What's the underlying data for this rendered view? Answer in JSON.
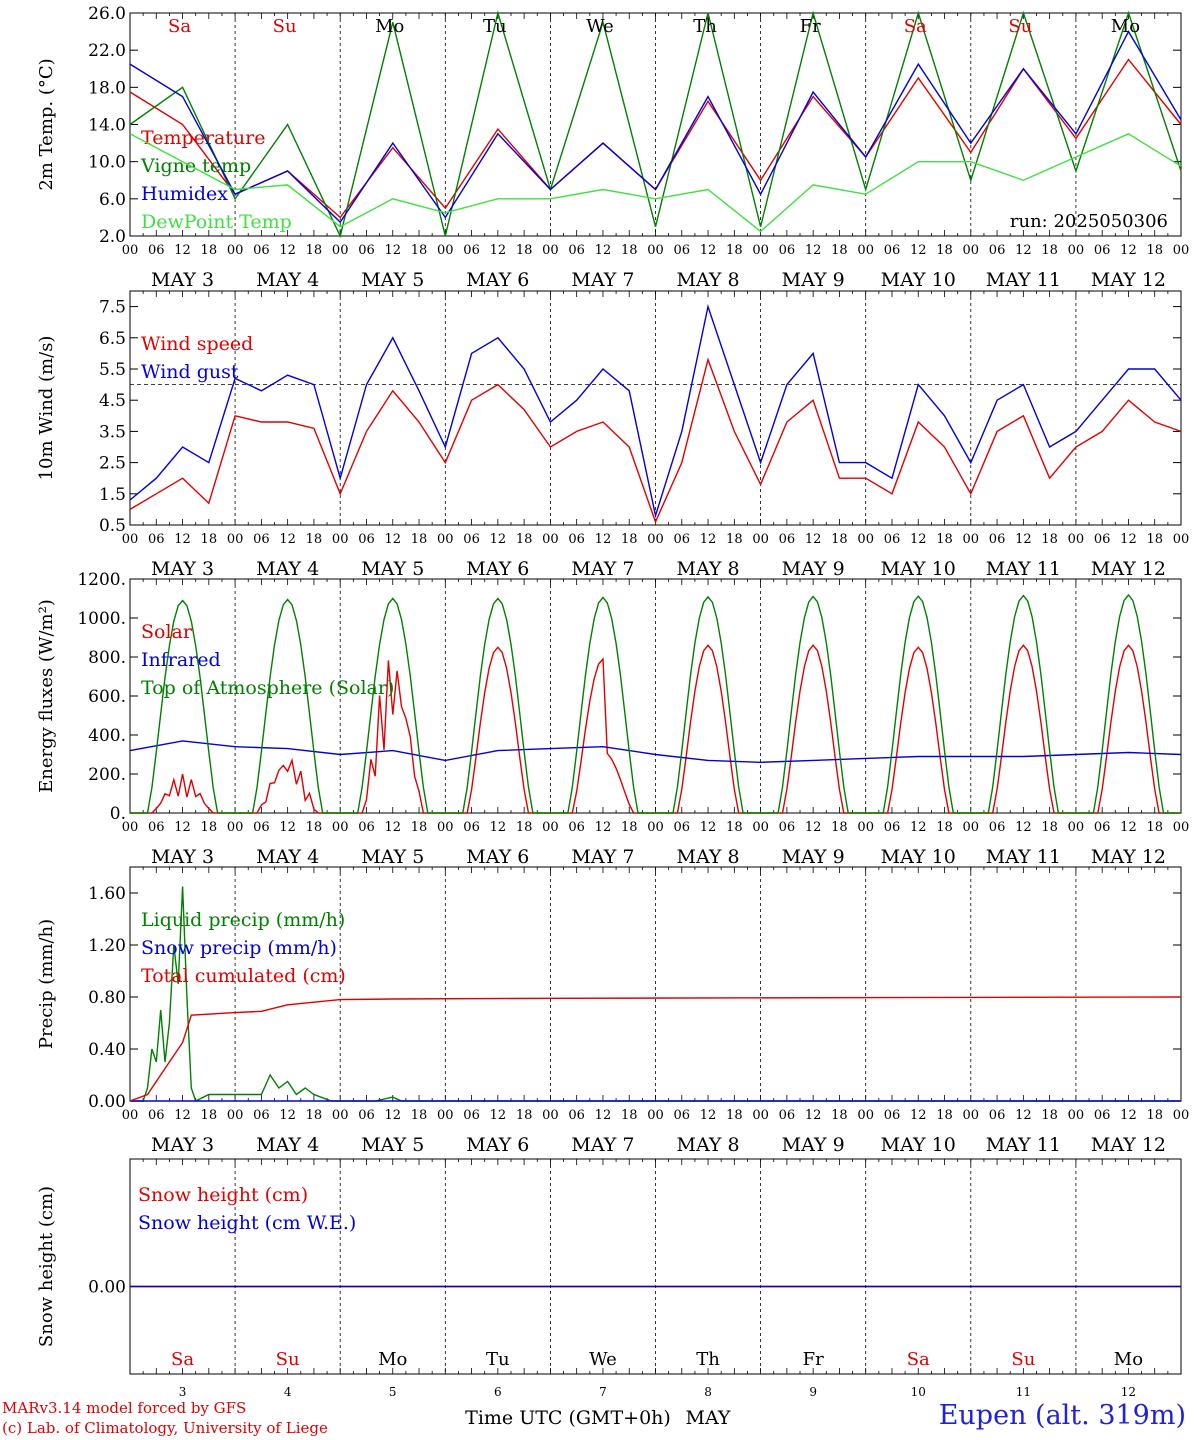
{
  "chart_data": [
    {
      "type": "line",
      "ylabel": "2m Temp. (°C)",
      "ylim": [
        2.0,
        26.0
      ],
      "yticks": [
        "2.0",
        "6.0",
        "10.0",
        "14.0",
        "18.0",
        "22.0",
        "26.0"
      ],
      "run_label": "run: 2025050306",
      "day_names": [
        "Sa",
        "Su",
        "Mo",
        "Tu",
        "We",
        "Th",
        "Fr",
        "Sa",
        "Su",
        "Mo"
      ],
      "x": [
        0,
        12,
        24,
        36,
        48,
        60,
        72,
        84,
        96,
        108,
        120,
        132,
        144,
        156,
        168,
        180,
        192,
        204,
        216,
        228,
        240
      ],
      "series": [
        {
          "name": "Temperature",
          "color": "#e00000",
          "values": [
            17.5,
            14.0,
            6.5,
            9.0,
            4.0,
            11.5,
            5.0,
            13.5,
            7.0,
            12.0,
            7.0,
            16.5,
            8.0,
            17.0,
            10.5,
            19.0,
            11.0,
            20.0,
            12.5,
            21.0,
            14.0
          ]
        },
        {
          "name": "Vigne temp",
          "color": "#008000",
          "values": [
            14.0,
            18.0,
            6.0,
            14.0,
            2.0,
            25.0,
            2.0,
            26.0,
            7.0,
            25.0,
            3.0,
            26.0,
            3.0,
            26.0,
            7.0,
            26.0,
            8.0,
            26.0,
            9.0,
            26.0,
            9.0
          ]
        },
        {
          "name": "Humidex",
          "color": "#0000e0",
          "values": [
            20.5,
            17.0,
            6.5,
            9.0,
            3.5,
            12.0,
            4.0,
            13.0,
            7.0,
            12.0,
            7.0,
            17.0,
            6.5,
            17.5,
            10.5,
            20.5,
            12.0,
            20.0,
            13.0,
            24.0,
            14.5
          ]
        },
        {
          "name": "DewPoint Temp",
          "color": "#40e040",
          "values": [
            13.0,
            10.0,
            7.0,
            7.5,
            3.0,
            6.0,
            4.5,
            6.0,
            6.0,
            7.0,
            6.0,
            7.0,
            2.5,
            7.5,
            6.5,
            10.0,
            10.0,
            8.0,
            10.5,
            13.0,
            9.5
          ]
        }
      ]
    },
    {
      "type": "line",
      "ylabel": "10m Wind (m/s)",
      "ylim": [
        0.5,
        8.0
      ],
      "yticks": [
        "0.5",
        "1.5",
        "2.5",
        "3.5",
        "4.5",
        "5.5",
        "6.5",
        "7.5"
      ],
      "reference_line": 5.0,
      "x": [
        0,
        6,
        12,
        18,
        24,
        30,
        36,
        42,
        48,
        54,
        60,
        66,
        72,
        78,
        84,
        90,
        96,
        102,
        108,
        114,
        120,
        126,
        132,
        138,
        144,
        150,
        156,
        162,
        168,
        174,
        180,
        186,
        192,
        198,
        204,
        210,
        216,
        222,
        228,
        234,
        240
      ],
      "series": [
        {
          "name": "Wind speed",
          "color": "#e00000",
          "values": [
            1.0,
            1.5,
            2.0,
            1.2,
            4.0,
            3.8,
            3.8,
            3.6,
            1.5,
            3.5,
            4.8,
            3.8,
            2.5,
            4.5,
            5.0,
            4.2,
            3.0,
            3.5,
            3.8,
            3.0,
            0.6,
            2.5,
            5.8,
            3.5,
            1.8,
            3.8,
            4.5,
            2.0,
            2.0,
            1.5,
            3.8,
            3.0,
            1.5,
            3.5,
            4.0,
            2.0,
            3.0,
            3.5,
            4.5,
            3.8,
            3.5
          ]
        },
        {
          "name": "Wind gust",
          "color": "#0000e0",
          "values": [
            1.3,
            2.0,
            3.0,
            2.5,
            5.2,
            4.8,
            5.3,
            5.0,
            2.0,
            5.0,
            6.5,
            4.8,
            3.0,
            6.0,
            6.5,
            5.5,
            3.8,
            4.5,
            5.5,
            4.8,
            0.8,
            3.5,
            7.5,
            5.0,
            2.5,
            5.0,
            6.0,
            2.5,
            2.5,
            2.0,
            5.0,
            4.0,
            2.5,
            4.5,
            5.0,
            3.0,
            3.5,
            4.5,
            5.5,
            5.5,
            4.5
          ]
        }
      ]
    },
    {
      "type": "line",
      "ylabel": "Energy fluxes (W/m²)",
      "ylim": [
        0,
        1200
      ],
      "yticks": [
        "0.",
        "200.",
        "400.",
        "600.",
        "800.",
        "1000.",
        "1200."
      ],
      "series": [
        {
          "name": "Solar",
          "color": "#e00000",
          "daily_peak": [
            200,
            300,
            830,
            850,
            790,
            860,
            860,
            850,
            860,
            860
          ]
        },
        {
          "name": "Infrared",
          "color": "#0000e0",
          "x": [
            0,
            12,
            24,
            36,
            48,
            60,
            72,
            84,
            96,
            108,
            120,
            132,
            144,
            156,
            168,
            180,
            192,
            204,
            216,
            228,
            240
          ],
          "values": [
            320,
            370,
            340,
            330,
            300,
            320,
            270,
            320,
            330,
            340,
            300,
            270,
            260,
            270,
            280,
            290,
            290,
            290,
            300,
            310,
            300
          ]
        },
        {
          "name": "Top of Atmosphere (Solar)",
          "color": "#008000",
          "daily_peak": [
            1090,
            1095,
            1100,
            1100,
            1105,
            1108,
            1110,
            1112,
            1115,
            1118
          ]
        }
      ]
    },
    {
      "type": "line",
      "ylabel": "Precip (mm/h)",
      "ylim": [
        0,
        1.8
      ],
      "yticks": [
        "0.00",
        "0.40",
        "0.80",
        "1.20",
        "1.60"
      ],
      "series": [
        {
          "name": "Liquid precip (mm/h)",
          "color": "#008000",
          "x": [
            0,
            3,
            4,
            5,
            6,
            7,
            8,
            9,
            10,
            11,
            12,
            13,
            14,
            15,
            18,
            30,
            32,
            34,
            36,
            38,
            40,
            42,
            46,
            56,
            60,
            62,
            64,
            72,
            240
          ],
          "values": [
            0,
            0,
            0.1,
            0.4,
            0.3,
            0.7,
            0.3,
            0.6,
            1.2,
            0.9,
            1.65,
            0.8,
            0.1,
            0,
            0.05,
            0.05,
            0.2,
            0.1,
            0.15,
            0.05,
            0.1,
            0.05,
            0,
            0,
            0.03,
            0,
            0,
            0,
            0
          ]
        },
        {
          "name": "Snow precip (mm/h)",
          "color": "#0000e0",
          "x": [
            0,
            240
          ],
          "values": [
            0,
            0
          ]
        },
        {
          "name": "Total cumulated (cm)",
          "color": "#e00000",
          "x": [
            0,
            4,
            8,
            12,
            14,
            24,
            30,
            36,
            42,
            48,
            60,
            96,
            240
          ],
          "values": [
            0,
            0.05,
            0.25,
            0.45,
            0.66,
            0.68,
            0.69,
            0.74,
            0.76,
            0.78,
            0.785,
            0.79,
            0.8
          ]
        }
      ]
    },
    {
      "type": "line",
      "ylabel": "Snow height (cm)",
      "yticks": [
        "0.00"
      ],
      "series": [
        {
          "name": "Snow height (cm)",
          "color": "#e00000",
          "x": [
            0,
            240
          ],
          "values": [
            0,
            0
          ]
        },
        {
          "name": "Snow height (cm W.E.)",
          "color": "#0000e0",
          "x": [
            0,
            240
          ],
          "values": [
            0,
            0
          ]
        }
      ]
    }
  ],
  "axis": {
    "hour_labels": [
      "00",
      "06",
      "12",
      "18"
    ],
    "date_labels": [
      "MAY  3",
      "MAY  4",
      "MAY  5",
      "MAY  6",
      "MAY  7",
      "MAY  8",
      "MAY  9",
      "MAY 10",
      "MAY 11",
      "MAY 12"
    ],
    "bottom_day_numbers": [
      "3",
      "4",
      "5",
      "6",
      "7",
      "8",
      "9",
      "10",
      "11",
      "12"
    ],
    "bottom_day_names": [
      "Sa",
      "Su",
      "Mo",
      "Tu",
      "We",
      "Th",
      "Fr",
      "Sa",
      "Su",
      "Mo"
    ],
    "weekend_indices": [
      0,
      1,
      7,
      8
    ],
    "xlabel": "Time UTC (GMT+0h)",
    "month": "MAY"
  },
  "colors": {
    "weekend": "#e00000",
    "weekday": "#000000"
  },
  "footer": {
    "credit_line1": "MARv3.14 model forced by GFS",
    "credit_line2": "(c) Lab. of Climatology, University of Liege",
    "station": "Eupen (alt. 319m)"
  }
}
